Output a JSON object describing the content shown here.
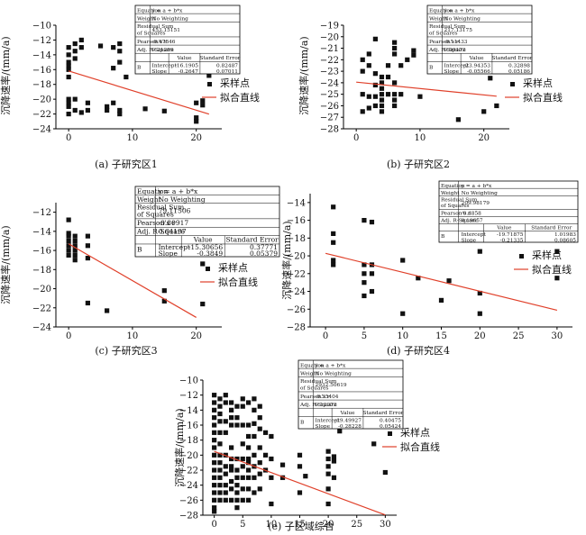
{
  "legend": {
    "points": "采样点",
    "line": "拟合直线"
  },
  "stats_labels": {
    "equation": "Equation",
    "weight": "Weight",
    "rss": "Residual Sum of Squares",
    "pearson": "Pearson's r",
    "adjr2": "Adj. R-Square",
    "value": "Value",
    "stderr": "Standard Error",
    "intercept": "Intercept",
    "slope": "Slope",
    "b": "B"
  },
  "chart_data": [
    {
      "type": "scatter",
      "caption": "(a) 子研究区1",
      "xlabel": "",
      "ylabel": "沉降速率/(mm/a)",
      "xlim": [
        -2,
        24
      ],
      "ylim": [
        -24,
        -10
      ],
      "xticks": [
        0,
        10,
        20
      ],
      "yticks": [
        -24,
        -22,
        -20,
        -18,
        -16,
        -14,
        -12,
        -10
      ],
      "points": {
        "x": [
          0,
          0,
          0,
          0,
          0,
          0,
          0,
          0,
          0,
          0,
          1,
          1,
          1,
          1,
          1,
          2,
          2,
          2,
          3,
          3,
          5,
          6,
          6,
          7,
          7,
          7,
          8,
          8,
          8,
          8,
          8,
          9,
          12,
          15,
          20,
          20,
          20,
          21,
          21,
          22
        ],
        "y": [
          -13,
          -14,
          -15,
          -15.5,
          -16,
          -17,
          -20,
          -20.5,
          -21,
          -22,
          -12.5,
          -13.5,
          -14.5,
          -20,
          -21.5,
          -12,
          -13,
          -21.8,
          -20.5,
          -21.5,
          -12.8,
          -21,
          -21.5,
          -13,
          -15.8,
          -20.5,
          -12.5,
          -13.5,
          -15,
          -21.5,
          -22,
          -17,
          -21.3,
          -21.6,
          -20.5,
          -22.5,
          -23,
          -20.8,
          -20.2,
          -16.8
        ]
      },
      "fit": {
        "intercept": -16.1905,
        "slope": -0.2647
      },
      "stats": {
        "equation": "y = a + b*x",
        "weight": "No Weighting",
        "rss": "453.15151",
        "pearson": "-0.47846",
        "adjr2": "0.21289",
        "intercept_value": "-16.1905",
        "intercept_se": "0.82487",
        "slope_value": "-0.2647",
        "slope_se": "0.07011"
      }
    },
    {
      "type": "scatter",
      "caption": "(b) 子研究区2",
      "xlabel": "",
      "ylabel": "沉降速率/(mm/a)",
      "xlim": [
        -2,
        24
      ],
      "ylim": [
        -28,
        -19
      ],
      "xticks": [
        0,
        10,
        20
      ],
      "yticks": [
        -28,
        -27,
        -26,
        -25,
        -24,
        -23,
        -22,
        -21,
        -20,
        -19
      ],
      "points": {
        "x": [
          1,
          1,
          1,
          1,
          2,
          2,
          2,
          2,
          3,
          3,
          3,
          3,
          3,
          4,
          4,
          4,
          4,
          4,
          4,
          4,
          5,
          5,
          5,
          6,
          6,
          6,
          6,
          6,
          6,
          6,
          7,
          7,
          8,
          9,
          9,
          10,
          16,
          20,
          21,
          22
        ],
        "y": [
          -22,
          -23,
          -25,
          -26.5,
          -21.5,
          -22.5,
          -25.2,
          -26.2,
          -20.2,
          -23.2,
          -24.2,
          -25.2,
          -26,
          -23.5,
          -24,
          -24.5,
          -25,
          -25.5,
          -26,
          -26.5,
          -22.5,
          -23.5,
          -25,
          -20.5,
          -21,
          -21.5,
          -24,
          -25,
          -25.5,
          -26,
          -22.5,
          -25,
          -22,
          -21.2,
          -21.6,
          -25.2,
          -27.2,
          -26.5,
          -23.6,
          -26
        ]
      },
      "fit": {
        "intercept": -23.94353,
        "slope": -0.05566
      },
      "stats": {
        "equation": "y = a + b*x",
        "weight": "No Weighting",
        "rss": "217.13175",
        "pearson": "-0.11433",
        "adjr2": "0.00172",
        "intercept_value": "-23.94353",
        "intercept_se": "0.32898",
        "slope_value": "-0.05566",
        "slope_se": "0.05186"
      }
    },
    {
      "type": "scatter",
      "caption": "(c) 子研究区3",
      "xlabel": "",
      "ylabel": "沉降速率/(mm/a)",
      "xlim": [
        -2,
        24
      ],
      "ylim": [
        -24,
        -11
      ],
      "xticks": [
        0,
        10,
        20
      ],
      "yticks": [
        -24,
        -22,
        -20,
        -18,
        -16,
        -14,
        -12
      ],
      "points": {
        "x": [
          0,
          0,
          0,
          0,
          0,
          0,
          0,
          1,
          1,
          1,
          1,
          1,
          1,
          3,
          3,
          3,
          3,
          6,
          15,
          15,
          21,
          21
        ],
        "y": [
          -12.8,
          -14.2,
          -14.5,
          -15,
          -15.5,
          -16,
          -16.5,
          -14.5,
          -15,
          -15.5,
          -16,
          -16.5,
          -17,
          -14.5,
          -15.5,
          -16.8,
          -21.5,
          -22.3,
          -20.2,
          -21.3,
          -17.4,
          -21.6
        ]
      },
      "fit": {
        "intercept": -15.30656,
        "slope": -0.3849
      },
      "stats": {
        "equation": "y = a + b*x",
        "weight": "No Weighting",
        "rss": "79.11506",
        "pearson": "-0.80917",
        "adjr2": "0.64197",
        "intercept_value": "-15.30656",
        "intercept_se": "0.37771",
        "slope_value": "-0.3849",
        "slope_se": "0.05379"
      }
    },
    {
      "type": "scatter",
      "caption": "(d) 子研究区4",
      "xlabel": "",
      "ylabel": "沉降速率/(mm/a)",
      "xlim": [
        -2,
        32
      ],
      "ylim": [
        -28,
        -13
      ],
      "xticks": [
        0,
        5,
        10,
        15,
        20,
        25,
        30
      ],
      "yticks": [
        -28,
        -26,
        -24,
        -22,
        -20,
        -18,
        -16,
        -14
      ],
      "points": {
        "x": [
          1,
          1,
          1,
          1,
          1,
          5,
          5,
          5,
          5,
          5,
          6,
          6,
          6,
          6,
          10,
          10,
          12,
          15,
          16,
          20,
          20,
          20,
          30,
          30
        ],
        "y": [
          -14.5,
          -17.5,
          -18.5,
          -20.5,
          -21,
          -16,
          -21,
          -22,
          -23,
          -24.5,
          -16.2,
          -21,
          -22,
          -24,
          -20.5,
          -26.5,
          -22.5,
          -25,
          -22.8,
          -19.5,
          -24.2,
          -26.5,
          -19.5,
          -22.5
        ]
      },
      "fit": {
        "intercept": -19.71875,
        "slope": -0.21335
      },
      "stats": {
        "equation": "y = a + b*x",
        "weight": "No Weighting",
        "rss": "209.98179",
        "pearson": "-0.4858",
        "adjr2": "0.19657",
        "intercept_value": "-19.71875",
        "intercept_se": "1.01983",
        "slope_value": "-0.21335",
        "slope_se": "0.08605"
      }
    },
    {
      "type": "scatter",
      "caption": "(e) 子区域综合",
      "xlabel": "",
      "ylabel": "沉降速率/(mm/a)",
      "xlim": [
        -2,
        32
      ],
      "ylim": [
        -28,
        -10
      ],
      "xticks": [
        0,
        5,
        10,
        15,
        20,
        25,
        30
      ],
      "yticks": [
        -28,
        -26,
        -24,
        -22,
        -20,
        -18,
        -16,
        -14,
        -12,
        -10
      ],
      "points": {
        "x": [
          0,
          0,
          0,
          0,
          0,
          0,
          0,
          0,
          0,
          0,
          0,
          0,
          0,
          0,
          0,
          0,
          0,
          1,
          1,
          1,
          1,
          1,
          1,
          1,
          1,
          1,
          1,
          1,
          1,
          1,
          2,
          2,
          2,
          2,
          2,
          2,
          2,
          2,
          2,
          2,
          3,
          3,
          3,
          3,
          3,
          3,
          3,
          3,
          3,
          3,
          3,
          4,
          4,
          4,
          4,
          4,
          4,
          4,
          4,
          4,
          4,
          5,
          5,
          5,
          5,
          5,
          5,
          5,
          5,
          5,
          6,
          6,
          6,
          6,
          6,
          6,
          6,
          6,
          6,
          6,
          7,
          7,
          7,
          7,
          7,
          7,
          7,
          7,
          8,
          8,
          8,
          8,
          8,
          8,
          8,
          9,
          9,
          9,
          10,
          10,
          10,
          10,
          12,
          12,
          15,
          15,
          15,
          16,
          20,
          20,
          20,
          20,
          20,
          20,
          21,
          21,
          21,
          22,
          28,
          30
        ],
        "y": [
          -12,
          -13,
          -14,
          -15,
          -16,
          -17,
          -18,
          -19,
          -20,
          -21,
          -22,
          -23,
          -24,
          -25,
          -26,
          -27,
          -27.5,
          -12.5,
          -13.5,
          -14.5,
          -15.5,
          -17,
          -18.5,
          -20,
          -21,
          -22,
          -23,
          -24,
          -25,
          -26,
          -12,
          -13,
          -15.5,
          -17,
          -20,
          -21.5,
          -22.5,
          -24,
          -25,
          -26,
          -13,
          -14,
          -15,
          -16,
          -19,
          -20.5,
          -21.5,
          -22,
          -23.5,
          -24.5,
          -26,
          -13.5,
          -15,
          -16,
          -20.5,
          -22,
          -23,
          -24,
          -25,
          -26,
          -27,
          -12.5,
          -13.5,
          -16,
          -18.5,
          -20.5,
          -21.5,
          -23,
          -24.5,
          -26,
          -13,
          -16,
          -17.5,
          -19,
          -20.5,
          -21,
          -22,
          -23,
          -24.5,
          -26,
          -12.5,
          -14,
          -15.8,
          -17.5,
          -20,
          -21.5,
          -23,
          -25,
          -13.5,
          -15,
          -16.5,
          -19,
          -21,
          -22.5,
          -24.5,
          -17,
          -20,
          -22,
          -17.5,
          -20.5,
          -23,
          -26.5,
          -21.3,
          -23,
          -20,
          -21.5,
          -25,
          -22.8,
          -19.5,
          -20.5,
          -21.5,
          -22.5,
          -24.5,
          -26.5,
          -20.2,
          -20.8,
          -23,
          -16.8,
          -18.5,
          -22.3
        ]
      },
      "fit": {
        "intercept": -19.49927,
        "slope": -0.28228
      },
      "stats": {
        "equation": "y = a + b*x",
        "weight": "No Weighting",
        "rss": "2932.50619",
        "pearson": "-0.35404",
        "adjr2": "0.12072",
        "intercept_value": "-19.49927",
        "intercept_se": "0.40475",
        "slope_value": "-0.28228",
        "slope_se": "0.05424"
      }
    }
  ]
}
